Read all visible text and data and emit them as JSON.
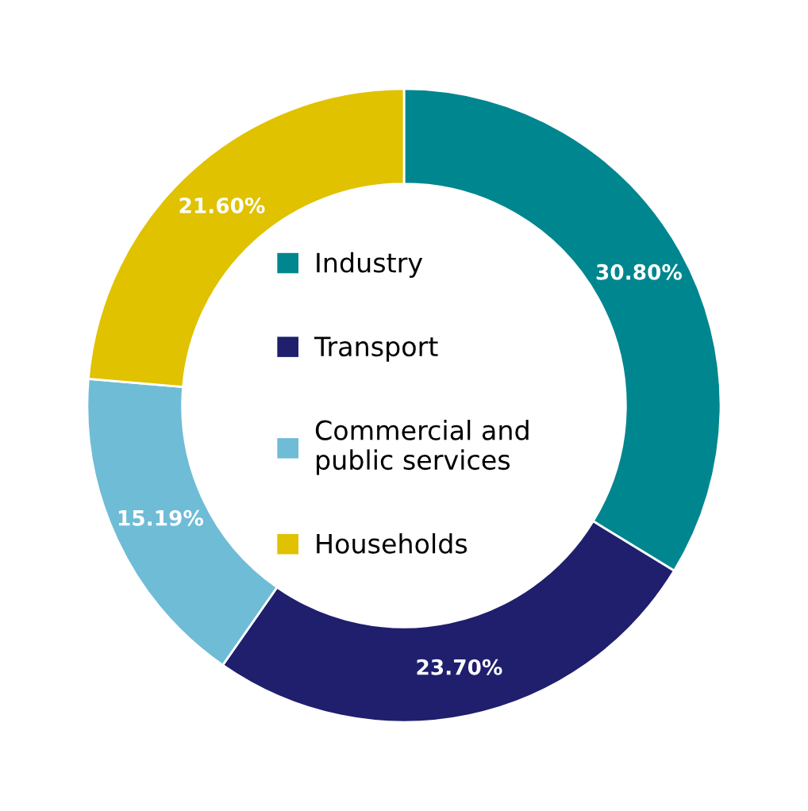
{
  "chart_data": {
    "type": "donut",
    "categories": [
      "Industry",
      "Transport",
      "Commercial and\npublic services",
      "Households"
    ],
    "values": [
      30.8,
      23.7,
      15.19,
      21.6
    ],
    "value_labels": [
      "30.80%",
      "23.70%",
      "15.19%",
      "21.60%"
    ],
    "colors": [
      "#00868f",
      "#1f1f6e",
      "#6fbcd6",
      "#e0c200"
    ],
    "legend": "center"
  }
}
